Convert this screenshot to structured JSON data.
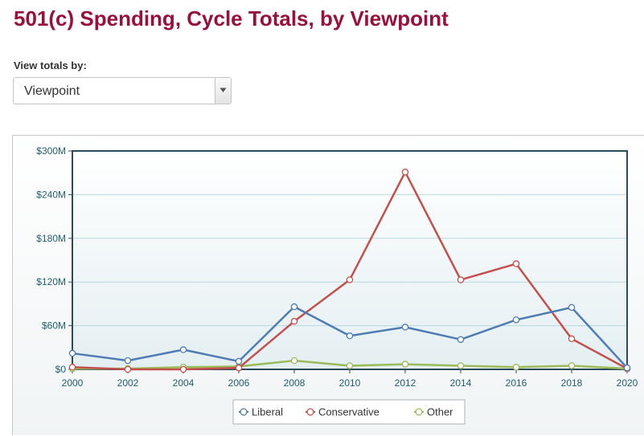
{
  "page": {
    "title": "501(c) Spending, Cycle Totals, by Viewpoint",
    "view_label": "View totals by:",
    "select": {
      "value": "Viewpoint"
    }
  },
  "chart_data": {
    "type": "line",
    "title": "",
    "xlabel": "",
    "ylabel": "",
    "x": [
      2000,
      2002,
      2004,
      2006,
      2008,
      2010,
      2012,
      2014,
      2016,
      2018,
      2020
    ],
    "x_tick_labels": [
      "2000",
      "2002",
      "2004",
      "2006",
      "2008",
      "2010",
      "2012",
      "2014",
      "2016",
      "2018",
      "2020"
    ],
    "y_ticks": [
      0,
      60,
      120,
      180,
      240,
      300
    ],
    "y_tick_labels": [
      "$0",
      "$60M",
      "$120M",
      "$180M",
      "$240M",
      "$300M"
    ],
    "ylim": [
      0,
      300
    ],
    "xlim": [
      2000,
      2020
    ],
    "grid": "horizontal",
    "legend_position": "bottom-center",
    "series": [
      {
        "name": "Liberal",
        "color": "#4f7db3",
        "values": [
          22,
          12,
          27,
          11,
          86,
          46,
          58,
          41,
          68,
          85,
          2
        ]
      },
      {
        "name": "Conservative",
        "color": "#c4504d",
        "values": [
          3,
          0,
          0,
          2,
          66,
          123,
          271,
          123,
          145,
          42,
          1
        ]
      },
      {
        "name": "Other",
        "color": "#9bbb59",
        "values": [
          1,
          1,
          3,
          4,
          12,
          5,
          7,
          5,
          3,
          5,
          1
        ]
      }
    ]
  }
}
